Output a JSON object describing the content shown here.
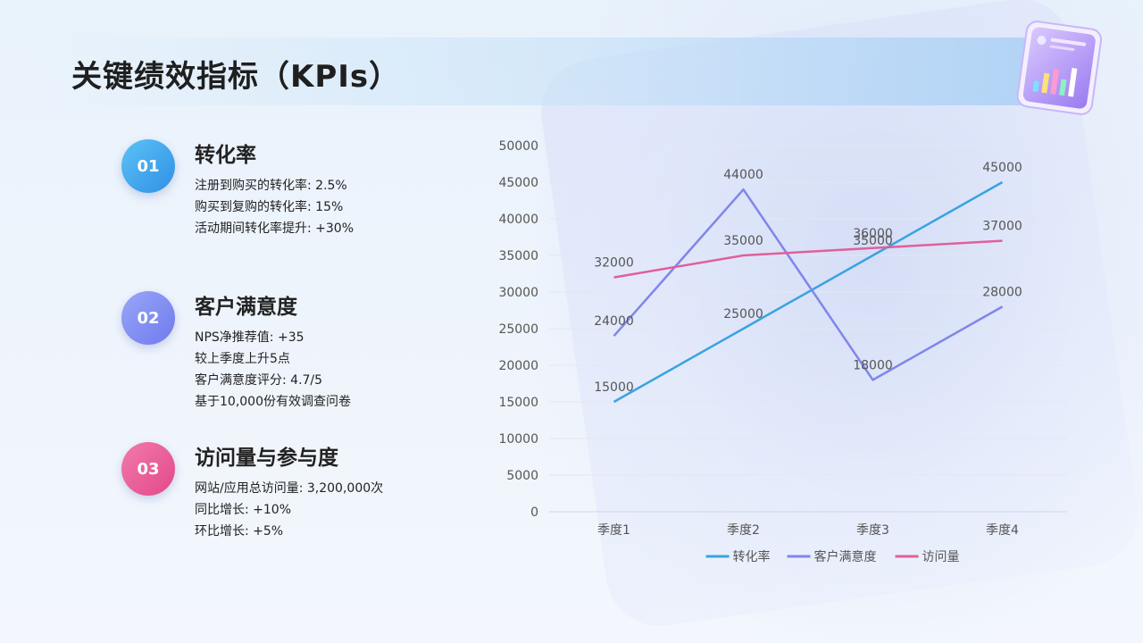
{
  "page": {
    "title": "关键绩效指标（KPIs）"
  },
  "kpis": [
    {
      "number": "01",
      "title": "转化率",
      "color_from": "#5cc3f5",
      "color_to": "#2f8fe6",
      "lines": [
        "注册到购买的转化率: 2.5%",
        "购买到复购的转化率: 15%",
        "活动期间转化率提升: +30%"
      ]
    },
    {
      "number": "02",
      "title": "客户满意度",
      "color_from": "#9aa6f7",
      "color_to": "#6f7aee",
      "lines": [
        "NPS净推荐值: +35",
        "较上季度上升5点",
        "客户满意度评分: 4.7/5",
        "基于10,000份有效调查问卷"
      ]
    },
    {
      "number": "03",
      "title": "访问量与参与度",
      "color_from": "#f27bab",
      "color_to": "#e2488a",
      "lines": [
        "网站/应用总访问量: 3,200,000次",
        "同比增长: +10%",
        "环比增长: +5%"
      ]
    }
  ],
  "chart_data": {
    "type": "line",
    "categories": [
      "季度1",
      "季度2",
      "季度3",
      "季度4"
    ],
    "ylim": [
      0,
      50000
    ],
    "yticks": [
      0,
      5000,
      10000,
      15000,
      20000,
      25000,
      30000,
      35000,
      40000,
      45000,
      50000
    ],
    "grid": true,
    "legend_position": "bottom",
    "series": [
      {
        "name": "转化率",
        "color": "#3aa3e0",
        "values": [
          15000,
          25000,
          35000,
          45000
        ]
      },
      {
        "name": "客户满意度",
        "color": "#7f86ea",
        "values": [
          24000,
          44000,
          18000,
          28000
        ]
      },
      {
        "name": "访问量",
        "color": "#e0609a",
        "values": [
          32000,
          35000,
          36000,
          37000
        ]
      }
    ]
  }
}
